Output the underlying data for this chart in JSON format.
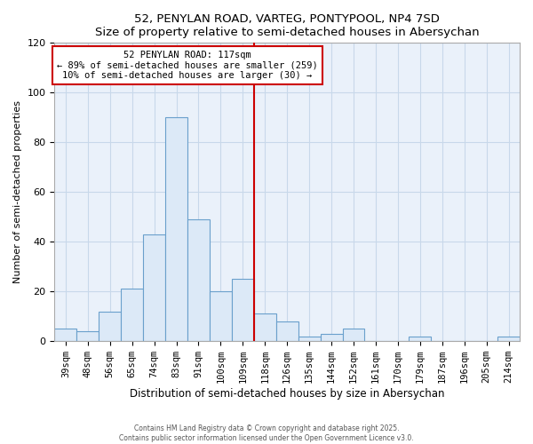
{
  "title": "52, PENYLAN ROAD, VARTEG, PONTYPOOL, NP4 7SD",
  "subtitle": "Size of property relative to semi-detached houses in Abersychan",
  "xlabel": "Distribution of semi-detached houses by size in Abersychan",
  "ylabel": "Number of semi-detached properties",
  "bar_labels": [
    "39sqm",
    "48sqm",
    "56sqm",
    "65sqm",
    "74sqm",
    "83sqm",
    "91sqm",
    "100sqm",
    "109sqm",
    "118sqm",
    "126sqm",
    "135sqm",
    "144sqm",
    "152sqm",
    "161sqm",
    "170sqm",
    "179sqm",
    "187sqm",
    "196sqm",
    "205sqm",
    "214sqm"
  ],
  "bar_values": [
    5,
    4,
    12,
    21,
    43,
    90,
    49,
    20,
    25,
    11,
    8,
    2,
    3,
    5,
    0,
    0,
    2,
    0,
    0,
    0,
    2
  ],
  "bar_color": "#dce9f7",
  "bar_edge_color": "#6aa0cc",
  "vline_x": 9.0,
  "vline_color": "#cc0000",
  "annotation_text": "52 PENYLAN ROAD: 117sqm\n← 89% of semi-detached houses are smaller (259)\n10% of semi-detached houses are larger (30) →",
  "annotation_box_color": "white",
  "annotation_box_edge": "#cc0000",
  "ylim": [
    0,
    120
  ],
  "yticks": [
    0,
    20,
    40,
    60,
    80,
    100,
    120
  ],
  "footnote": "Contains HM Land Registry data © Crown copyright and database right 2025.\nContains public sector information licensed under the Open Government Licence v3.0.",
  "bg_color": "#ffffff",
  "plot_bg_color": "#eaf1fa",
  "grid_color": "#c8d8ea"
}
